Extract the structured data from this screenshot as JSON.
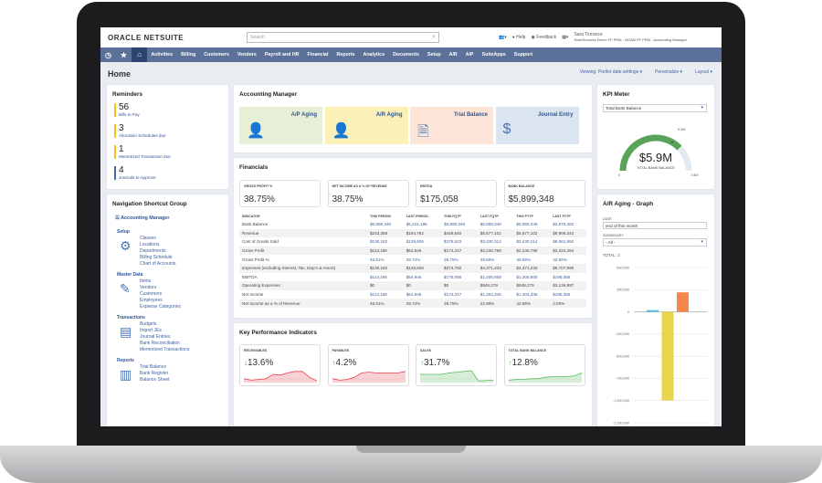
{
  "header": {
    "logo": "ORACLE NETSUITE",
    "search_placeholder": "Search",
    "help": "Help",
    "feedback": "Feedback",
    "user_name": "Sara Torrance",
    "user_role": "SuiteSuccess Demo FF PRM - NOAM FF PRM - Accounting Manager"
  },
  "nav": {
    "items": [
      "Activities",
      "Billing",
      "Customers",
      "Vendors",
      "Payroll and HR",
      "Financial",
      "Reports",
      "Analytics",
      "Documents",
      "Setup",
      "A/R",
      "A/P",
      "SuiteApps",
      "Support"
    ]
  },
  "page": {
    "title": "Home",
    "viewing": "Viewing: Portlet date settings ▾",
    "personalize": "Personalize ▾",
    "layout": "Layout ▾"
  },
  "reminders": {
    "title": "Reminders",
    "items": [
      {
        "count": "56",
        "label": "Bills to Pay",
        "color": "#f0c419"
      },
      {
        "count": "3",
        "label": "Allocation Schedules due",
        "color": "#f0c419"
      },
      {
        "count": "1",
        "label": "Memorized Transaction due",
        "color": "#f0c419"
      },
      {
        "count": "4",
        "label": "Journals to Approve",
        "color": "#4a6a9c"
      }
    ]
  },
  "shortcuts": {
    "title": "Navigation Shortcut Group",
    "group": "Accounting Manager",
    "sections": [
      {
        "name": "Setup",
        "links": [
          "Classes",
          "Locations",
          "Departments",
          "Billing Schedule",
          "Chart of Accounts"
        ]
      },
      {
        "name": "Master Data",
        "links": [
          "Items",
          "Vendors",
          "Customers",
          "Employees",
          "Expense Categories"
        ]
      },
      {
        "name": "Transactions",
        "links": [
          "Budgets",
          "Import JEs",
          "Journal Entries",
          "Bank Reconciliation",
          "Memorized Transactions"
        ]
      },
      {
        "name": "Reports",
        "links": [
          "Trial Balance",
          "Bank Register",
          "Balance Sheet"
        ]
      }
    ]
  },
  "accounting_manager": {
    "title": "Accounting Manager",
    "tiles": [
      {
        "label": "A/P Aging",
        "bg": "#e6f0d9",
        "icon": "user-box-icon"
      },
      {
        "label": "A/R Aging",
        "bg": "#fcf0b9",
        "icon": "user-check-icon"
      },
      {
        "label": "Trial Balance",
        "bg": "#fde6d8",
        "icon": "document-icon"
      },
      {
        "label": "Journal Entry",
        "bg": "#dbe5f1",
        "icon": "dollar-notebook-icon"
      }
    ]
  },
  "financials": {
    "title": "Financials",
    "cards": [
      {
        "label": "GROSS PROFIT %",
        "value": "38.75%"
      },
      {
        "label": "NET INCOME AS A % OF REVENUE",
        "value": "38.75%"
      },
      {
        "label": "EBITDA",
        "value": "$175,058"
      },
      {
        "label": "BANK BALANCE",
        "value": "$5,899,348"
      }
    ],
    "columns": [
      "INDICATOR",
      "THIS PERIOD",
      "LAST PERIOD",
      "THIS FQTP",
      "LAST FQTP",
      "THIS FYTP",
      "LAST FYTP"
    ],
    "rows": [
      {
        "cells": [
          "Bank Balance",
          "$5,899,348",
          "$5,231,196",
          "$5,899,348",
          "$5,899,348",
          "$5,899,348",
          "$2,976,482"
        ],
        "link": true
      },
      {
        "cells": [
          "Revenue",
          "$243,368",
          "$184,782",
          "$449,840",
          "$5,677,102",
          "$5,677,102",
          "$9,906,344"
        ],
        "link": false
      },
      {
        "cells": [
          "Cost of Goods Sold",
          "$130,182",
          "$129,836",
          "$275,523",
          "$3,430,314",
          "$3,430,314",
          "$6,581,950"
        ],
        "link": true
      },
      {
        "cells": [
          "Gross Profit",
          "$113,186",
          "$54,946",
          "$174,317",
          "$2,246,788",
          "$2,246,788",
          "$3,324,394"
        ],
        "link": false
      },
      {
        "cells": [
          "Gross Profit %",
          "46.51%",
          "29.74%",
          "38.75%",
          "39.58%",
          "39.58%",
          "33.56%"
        ],
        "link": true
      },
      {
        "cells": [
          "Expenses (excluding Interest, Tax, Dep'n & Amort)",
          "$130,182",
          "$129,836",
          "$274,782",
          "$4,371,233",
          "$4,371,233",
          "$9,707,990"
        ],
        "link": false
      },
      {
        "cells": [
          "EBITDA",
          "$113,186",
          "$54,946",
          "$175,058",
          "$1,305,869",
          "$1,305,869",
          "$198,355"
        ],
        "link": true
      },
      {
        "cells": [
          "Operating Expenses",
          "$0",
          "$0",
          "$0",
          "$948,279",
          "$948,279",
          "$3,136,997"
        ],
        "link": false
      },
      {
        "cells": [
          "Net Income",
          "$113,186",
          "$54,946",
          "$174,317",
          "$1,304,336",
          "$1,304,336",
          "$198,355"
        ],
        "link": true
      },
      {
        "cells": [
          "Net Income as a % of Revenue",
          "46.51%",
          "29.74%",
          "38.75%",
          "22.98%",
          "22.98%",
          "2.00%"
        ],
        "link": false
      }
    ]
  },
  "kpis": {
    "title": "Key Performance Indicators",
    "items": [
      {
        "label": "RECEIVABLES",
        "value": "13.6%",
        "arrow": "↓",
        "color": "#e8434f",
        "spark": [
          2,
          1,
          1.5,
          2,
          5,
          4.5,
          6,
          7,
          7,
          3,
          0.5
        ]
      },
      {
        "label": "PAYABLES",
        "value": "4.2%",
        "arrow": "↑",
        "color": "#e8434f",
        "spark": [
          2,
          1,
          1.5,
          3,
          6,
          6.5,
          6,
          6,
          6,
          6,
          7
        ]
      },
      {
        "label": "SALES",
        "value": "31.7%",
        "arrow": "↑",
        "color": "#5cb85c",
        "spark": [
          5,
          5,
          5,
          5,
          6,
          6.5,
          7,
          7.5,
          0.5,
          0.8,
          1
        ]
      },
      {
        "label": "TOTAL BANK BALANCE",
        "value": "12.8%",
        "arrow": "↑",
        "color": "#5cb85c",
        "spark": [
          1,
          1.5,
          1.5,
          2,
          2,
          3,
          3.5,
          3.5,
          3.5,
          4,
          6
        ]
      }
    ]
  },
  "kpi_meter": {
    "title": "KPI Meter",
    "select": "Total Bank Balance",
    "value": "$5.9M",
    "caption": "TOTAL BANK BALANCE",
    "min": "0",
    "max": "7.8M",
    "target": "5.2M",
    "fraction": 0.756,
    "target_fraction": 0.667,
    "color": "#5aa35a"
  },
  "ar_graph": {
    "title": "A/R Aging - Graph",
    "date_label": "DATE",
    "date_value": "end of this month",
    "subsidiary_label": "SUBSIDIARY",
    "subsidiary_value": "- All -",
    "total_label": "TOTAL:",
    "total_value": "3"
  },
  "chart_data": {
    "type": "bar",
    "ylim": [
      -1250000,
      500000
    ],
    "yticks": [
      "500,000",
      "250,000",
      "0",
      "-250,000",
      "-500,000",
      "-750,000",
      "-1,000,000",
      "-1,250,000"
    ],
    "ytick_values": [
      500000,
      250000,
      0,
      -250000,
      -500000,
      -750000,
      -1000000,
      -1250000
    ],
    "values": [
      20000,
      -1000000,
      220000
    ],
    "colors": [
      "#5bc0de",
      "#e8d44d",
      "#f5874a"
    ],
    "grid": true
  }
}
